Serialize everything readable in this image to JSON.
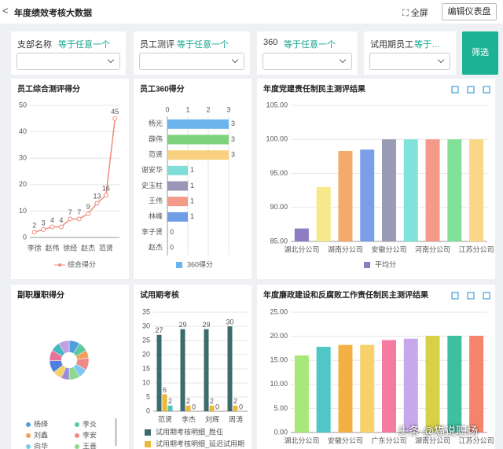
{
  "header": {
    "title": "年度绩效考核大数据",
    "fullscreen": "全屏",
    "edit": "编辑仪表盘"
  },
  "filters": [
    {
      "label": "支部名称",
      "op": "等于任意一个"
    },
    {
      "label": "员工测评",
      "op": "等于任意一个"
    },
    {
      "label": "360",
      "op": "等于任意一个"
    },
    {
      "label": "试用期员工",
      "op": "等于任意一个"
    }
  ],
  "filter_button": "筛选",
  "watermark": "头条 @猫说职场",
  "chart_data": [
    {
      "type": "line",
      "title": "员工综合测评得分",
      "categories": [
        "李徐",
        null,
        "赵伟",
        null,
        "徐经",
        null,
        "赵杰",
        null,
        "范贤",
        null
      ],
      "series": [
        {
          "name": "综合得分",
          "color": "#f08a7e",
          "values": [
            2,
            3,
            4,
            4,
            7,
            7,
            9,
            13,
            16,
            45
          ]
        }
      ],
      "ylim": [
        0,
        50
      ],
      "yticks": [
        0,
        10,
        20,
        30,
        40,
        50
      ],
      "grid": true
    },
    {
      "type": "hbar",
      "title": "员工360得分",
      "categories": [
        "杨光",
        "薛伟",
        "范贤",
        "谢安华",
        "史玉柱",
        "王伟",
        "林峰",
        "李子贤",
        "赵杰"
      ],
      "series": [
        {
          "name": "360得分",
          "color": "#6cb4ee",
          "values": [
            3,
            3,
            3,
            1,
            1,
            1,
            1,
            0,
            0
          ]
        }
      ],
      "colors": [
        "#6cb4ee",
        "#7ed27e",
        "#f8d07e",
        "#7fdfd8",
        "#9b96b8",
        "#f49a8a",
        "#6f9de8",
        "#6cb4ee",
        "#6cb4ee"
      ],
      "xlim": [
        0,
        3
      ],
      "xticks": [
        0,
        1,
        2,
        3
      ],
      "grid": true
    },
    {
      "type": "bar",
      "title": "年度党建责任制民主测评结果",
      "categories": [
        "湖北分公司",
        null,
        "湖南分公司",
        null,
        "安徽分公司",
        null,
        "河南分公司",
        null,
        "江苏分公司"
      ],
      "series": [
        {
          "name": "平均分",
          "color": "#8e7cc3",
          "values": [
            86.9,
            93,
            98.3,
            98.5,
            100,
            100,
            100,
            100,
            100
          ]
        }
      ],
      "colors": [
        "#8e7cc3",
        "#f7e98a",
        "#f5a96b",
        "#7a9fe8",
        "#9a9bb5",
        "#7fe3dc",
        "#f59a8a",
        "#82e09a",
        "#fad786"
      ],
      "ylim": [
        85,
        105
      ],
      "yticks": [
        {
          "value": 85,
          "label": "85.00"
        },
        {
          "value": 90,
          "label": "90.00"
        },
        {
          "value": 95,
          "label": "95.00"
        },
        {
          "value": 100,
          "label": "100.00"
        },
        {
          "value": 105,
          "label": "105.00"
        }
      ],
      "grid": true
    },
    {
      "type": "pie",
      "title": "副职履职得分",
      "categories": [
        "杨绎",
        "李炎",
        "刘鑫",
        "李安",
        "向华",
        "王善",
        null,
        null,
        null,
        null,
        null,
        null
      ],
      "values": [
        8,
        7,
        6,
        9,
        7,
        8,
        6,
        7,
        9,
        8,
        7,
        8
      ],
      "colors": [
        "#4f9fe0",
        "#5bc9a0",
        "#f5a05a",
        "#f08a8a",
        "#7ec8f0",
        "#8ed78e",
        "#9b8cd8",
        "#f5d06a",
        "#4f7fe0",
        "#e8739a",
        "#48b8c0",
        "#c0a0e0"
      ]
    },
    {
      "type": "grouped",
      "title": "试用期考核",
      "categories": [
        "范贤",
        "李杰",
        "刘辉",
        "周涛"
      ],
      "series": [
        {
          "name": "试用期考核明细_胜任",
          "color": "#3d6b6b",
          "values": [
            27,
            29,
            29,
            30
          ]
        },
        {
          "name": "试用期考核明细_延迟试用期",
          "color": "#e8b93a",
          "values": [
            6,
            2,
            2,
            2
          ]
        },
        {
          "color": "#4dc4b8",
          "values": [
            2,
            0,
            0,
            0
          ]
        }
      ],
      "ylim": [
        0,
        35
      ],
      "yticks": [
        0,
        5,
        10,
        15,
        20,
        25,
        30,
        35
      ],
      "grid": true
    },
    {
      "type": "bar",
      "title": "年度廉政建设和反腐败工作责任制民主测评结果",
      "categories": [
        "湖北分公司",
        null,
        "安徽分公司",
        null,
        "广东分公司",
        null,
        "湖南分公司",
        null,
        "江苏分公司"
      ],
      "series": [
        {
          "values": [
            16,
            17.8,
            18.2,
            18.2,
            19.2,
            19.5,
            20.1,
            20.1,
            20.1
          ]
        }
      ],
      "colors": [
        "#a6e87a",
        "#4fc7c7",
        "#f5b045",
        "#f7d16b",
        "#f57ba0",
        "#c7a8e8",
        "#d8d048",
        "#3dbfa0",
        "#f5846a"
      ],
      "ylim": [
        0,
        25
      ],
      "yticks": [
        {
          "value": 0,
          "label": "0.00"
        },
        {
          "value": 5,
          "label": "5.00"
        },
        {
          "value": 10,
          "label": "10.00"
        },
        {
          "value": 15,
          "label": "15.00"
        },
        {
          "value": 20,
          "label": "20.00"
        },
        {
          "value": 25,
          "label": "25.00"
        }
      ],
      "grid": true
    }
  ]
}
